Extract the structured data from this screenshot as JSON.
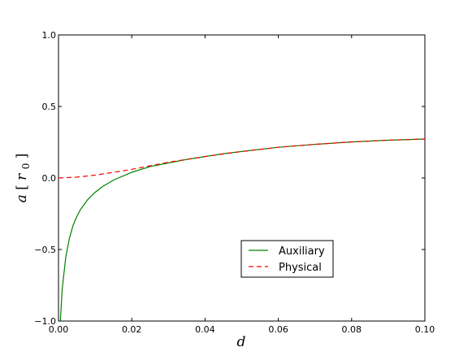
{
  "chart_data": {
    "type": "line",
    "title": "",
    "xlabel": "d",
    "ylabel_main": "a",
    "ylabel_unit": "r",
    "ylabel_sub": "0",
    "xlim": [
      0.0,
      0.1
    ],
    "ylim": [
      -1.0,
      1.0
    ],
    "x_ticks": [
      "0.00",
      "0.02",
      "0.04",
      "0.06",
      "0.08",
      "0.10"
    ],
    "x_tick_values": [
      0.0,
      0.02,
      0.04,
      0.06,
      0.08,
      0.1
    ],
    "y_ticks": [
      "−1.0",
      "−0.5",
      "0.0",
      "0.5",
      "1.0"
    ],
    "y_tick_values": [
      -1.0,
      -0.5,
      0.0,
      0.5,
      1.0
    ],
    "grid": false,
    "legend_position": "lower-right",
    "series": [
      {
        "name": "Auxiliary",
        "color": "#008000",
        "style": "solid",
        "x": [
          0.0005,
          0.001,
          0.002,
          0.003,
          0.004,
          0.005,
          0.006,
          0.008,
          0.01,
          0.012,
          0.015,
          0.02,
          0.025,
          0.03,
          0.035,
          0.04,
          0.045,
          0.05,
          0.06,
          0.07,
          0.08,
          0.09,
          0.1
        ],
        "y": [
          -1.0,
          -0.78,
          -0.55,
          -0.42,
          -0.33,
          -0.27,
          -0.22,
          -0.15,
          -0.1,
          -0.06,
          -0.015,
          0.04,
          0.08,
          0.105,
          0.13,
          0.15,
          0.17,
          0.185,
          0.215,
          0.235,
          0.252,
          0.264,
          0.273
        ]
      },
      {
        "name": "Physical",
        "color": "#ff0000",
        "style": "dashed",
        "x": [
          0.0,
          0.005,
          0.01,
          0.015,
          0.02,
          0.025,
          0.03,
          0.035,
          0.04,
          0.045,
          0.05,
          0.06,
          0.07,
          0.08,
          0.09,
          0.1
        ],
        "y": [
          0.0,
          0.006,
          0.02,
          0.04,
          0.06,
          0.085,
          0.11,
          0.13,
          0.15,
          0.168,
          0.185,
          0.215,
          0.235,
          0.252,
          0.264,
          0.273
        ]
      }
    ]
  }
}
